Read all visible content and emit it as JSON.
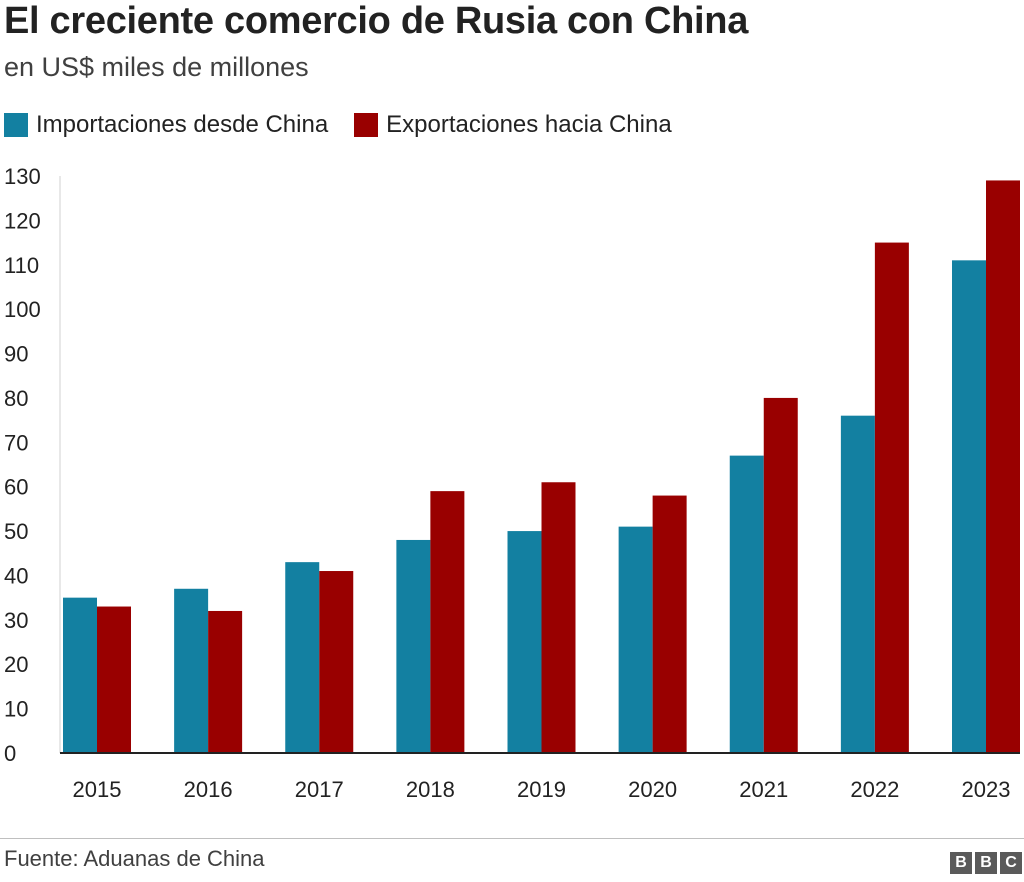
{
  "header": {
    "title": "El creciente comercio de Rusia con China",
    "subtitle": "en US$ miles de millones"
  },
  "legend": {
    "items": [
      {
        "label": "Importaciones desde China",
        "color": "#1380A1"
      },
      {
        "label": "Exportaciones hacia China",
        "color": "#990000"
      }
    ]
  },
  "chart_data": {
    "type": "bar",
    "title": "El creciente comercio de Rusia con China",
    "subtitle": "en US$ miles de millones",
    "xlabel": "",
    "ylabel": "",
    "categories": [
      "2015",
      "2016",
      "2017",
      "2018",
      "2019",
      "2020",
      "2021",
      "2022",
      "2023"
    ],
    "series": [
      {
        "name": "Importaciones desde China",
        "color": "#1380A1",
        "values": [
          35,
          37,
          43,
          48,
          50,
          51,
          67,
          76,
          111
        ]
      },
      {
        "name": "Exportaciones hacia China",
        "color": "#990000",
        "values": [
          33,
          32,
          41,
          59,
          61,
          58,
          80,
          115,
          129
        ]
      }
    ],
    "ylim": [
      0,
      130
    ],
    "yticks": [
      0,
      10,
      20,
      30,
      40,
      50,
      60,
      70,
      80,
      90,
      100,
      110,
      120,
      130
    ],
    "grid": false,
    "legend_position": "top-left"
  },
  "footer": {
    "source": "Fuente: Aduanas de China",
    "logo": [
      "B",
      "B",
      "C"
    ]
  }
}
